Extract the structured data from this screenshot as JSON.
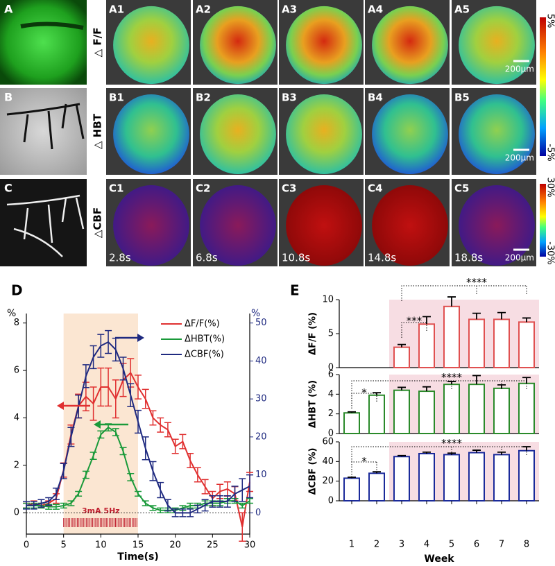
{
  "panels": {
    "left": [
      "A",
      "B",
      "C"
    ],
    "grid": [
      [
        "A1",
        "A2",
        "A3",
        "A4",
        "A5"
      ],
      [
        "B1",
        "B2",
        "B3",
        "B4",
        "B5"
      ],
      [
        "C1",
        "C2",
        "C3",
        "C4",
        "C5"
      ]
    ],
    "row_labels": [
      "△ F/F",
      "△ HBT",
      "△CBF"
    ],
    "times": [
      "2.8s",
      "6.8s",
      "10.8s",
      "14.8s",
      "18.8s"
    ],
    "scale_bar": "200μm",
    "colorbars": [
      {
        "max": "5%",
        "min": "-5%"
      },
      {
        "max": "30%",
        "min": "-30%"
      }
    ]
  },
  "chart_data": [
    {
      "type": "line",
      "panel_label": "D",
      "xlabel": "Time(s)",
      "ylabel": "%",
      "y2label": "%",
      "x": [
        0,
        1,
        2,
        3,
        4,
        5,
        6,
        7,
        8,
        9,
        10,
        11,
        12,
        13,
        14,
        15,
        16,
        17,
        18,
        19,
        20,
        21,
        22,
        23,
        24,
        25,
        26,
        27,
        28,
        29,
        30
      ],
      "xlim": [
        0,
        30
      ],
      "xticks": [
        0,
        5,
        10,
        15,
        20,
        25,
        30
      ],
      "ylim": [
        -0.9,
        8.4
      ],
      "yticks": [
        0,
        2,
        4,
        6,
        8
      ],
      "y2lim": [
        -5.6,
        52.5
      ],
      "y2ticks": [
        0,
        10,
        20,
        30,
        40,
        50
      ],
      "legend": "upper right",
      "stimulus": {
        "label": "3mA 5Hz",
        "range": [
          5,
          15
        ]
      },
      "series": [
        {
          "name": "ΔF/F(%)",
          "color": "#e03030",
          "axis": "y",
          "values": [
            0.3,
            0.4,
            0.3,
            0.4,
            0.6,
            1.8,
            3.3,
            4.5,
            4.9,
            4.6,
            5.3,
            5.3,
            4.8,
            5.6,
            5.9,
            5.3,
            4.8,
            4.0,
            3.7,
            3.5,
            2.8,
            3.0,
            2.2,
            1.6,
            1.1,
            0.6,
            0.9,
            1.0,
            0.8,
            -0.6,
            1.3
          ],
          "errors": [
            0.1,
            0.1,
            0.1,
            0.1,
            0.2,
            0.3,
            0.4,
            0.5,
            0.6,
            0.7,
            0.8,
            0.8,
            0.8,
            0.7,
            0.6,
            0.5,
            0.4,
            0.3,
            0.3,
            0.3,
            0.3,
            0.3,
            0.3,
            0.3,
            0.3,
            0.3,
            0.3,
            0.3,
            0.3,
            0.6,
            0.4
          ]
        },
        {
          "name": "ΔHBT(%)",
          "color": "#1a9a3a",
          "axis": "y",
          "values": [
            0.3,
            0.3,
            0.3,
            0.25,
            0.25,
            0.3,
            0.4,
            0.8,
            1.6,
            2.4,
            3.3,
            3.6,
            3.4,
            2.6,
            1.5,
            0.8,
            0.4,
            0.2,
            0.1,
            0.1,
            0.1,
            0.2,
            0.3,
            0.3,
            0.4,
            0.4,
            0.4,
            0.5,
            0.5,
            0.3,
            0.5
          ],
          "errors": [
            0.1,
            0.1,
            0.1,
            0.1,
            0.1,
            0.1,
            0.1,
            0.1,
            0.15,
            0.15,
            0.15,
            0.15,
            0.15,
            0.15,
            0.15,
            0.1,
            0.1,
            0.1,
            0.1,
            0.1,
            0.1,
            0.1,
            0.1,
            0.1,
            0.1,
            0.1,
            0.1,
            0.1,
            0.1,
            0.1,
            0.1
          ]
        },
        {
          "name": "ΔCBF(%)",
          "color": "#1f2a80",
          "axis": "y2",
          "values": [
            2,
            2,
            2.5,
            3,
            5,
            11,
            20,
            28,
            36,
            41,
            44,
            45,
            43,
            38,
            31,
            24,
            17,
            11,
            6,
            2,
            0,
            0,
            0,
            1,
            2,
            3,
            3,
            3,
            5,
            6,
            7
          ],
          "errors": [
            1,
            1,
            1,
            1,
            1.5,
            2,
            2.5,
            3,
            3,
            3,
            3,
            3,
            3,
            3,
            3,
            3,
            3,
            2.5,
            2,
            1.5,
            1,
            1,
            1,
            1,
            1.5,
            1.5,
            1.5,
            1.5,
            2,
            3,
            3
          ]
        }
      ]
    },
    {
      "type": "bar-panels",
      "panel_label": "E",
      "xlabel": "Week",
      "categories": [
        "1",
        "2",
        "3",
        "4",
        "5",
        "6",
        "7",
        "8"
      ],
      "panels": [
        {
          "ylabel": "ΔF/F (%)",
          "color": "#e05050",
          "ylim": [
            0,
            10
          ],
          "yticks": [
            0,
            5,
            10
          ],
          "values": [
            null,
            null,
            3.0,
            6.4,
            9.0,
            7.1,
            7.1,
            6.7
          ],
          "errors": [
            null,
            null,
            0.4,
            1.1,
            1.4,
            0.9,
            1.0,
            0.6
          ],
          "annotations": [
            "***",
            "****"
          ]
        },
        {
          "ylabel": "ΔHBT (%)",
          "color": "#2a8a2a",
          "ylim": [
            0,
            6
          ],
          "yticks": [
            0,
            2,
            4,
            6
          ],
          "values": [
            2.1,
            3.9,
            4.4,
            4.3,
            5.0,
            5.0,
            4.6,
            5.1
          ],
          "errors": [
            0.1,
            0.25,
            0.3,
            0.45,
            0.3,
            0.9,
            0.35,
            0.6
          ],
          "annotations": [
            "*",
            "****"
          ]
        },
        {
          "ylabel": "ΔCBF (%)",
          "color": "#1a2a9a",
          "ylim": [
            0,
            60
          ],
          "yticks": [
            0,
            20,
            40,
            60
          ],
          "values": [
            23,
            28,
            45,
            48,
            47,
            49,
            47,
            51
          ],
          "errors": [
            1,
            1.5,
            1,
            1.5,
            1.5,
            2.5,
            2.5,
            4
          ],
          "annotations": [
            "*",
            "****"
          ]
        }
      ]
    }
  ]
}
